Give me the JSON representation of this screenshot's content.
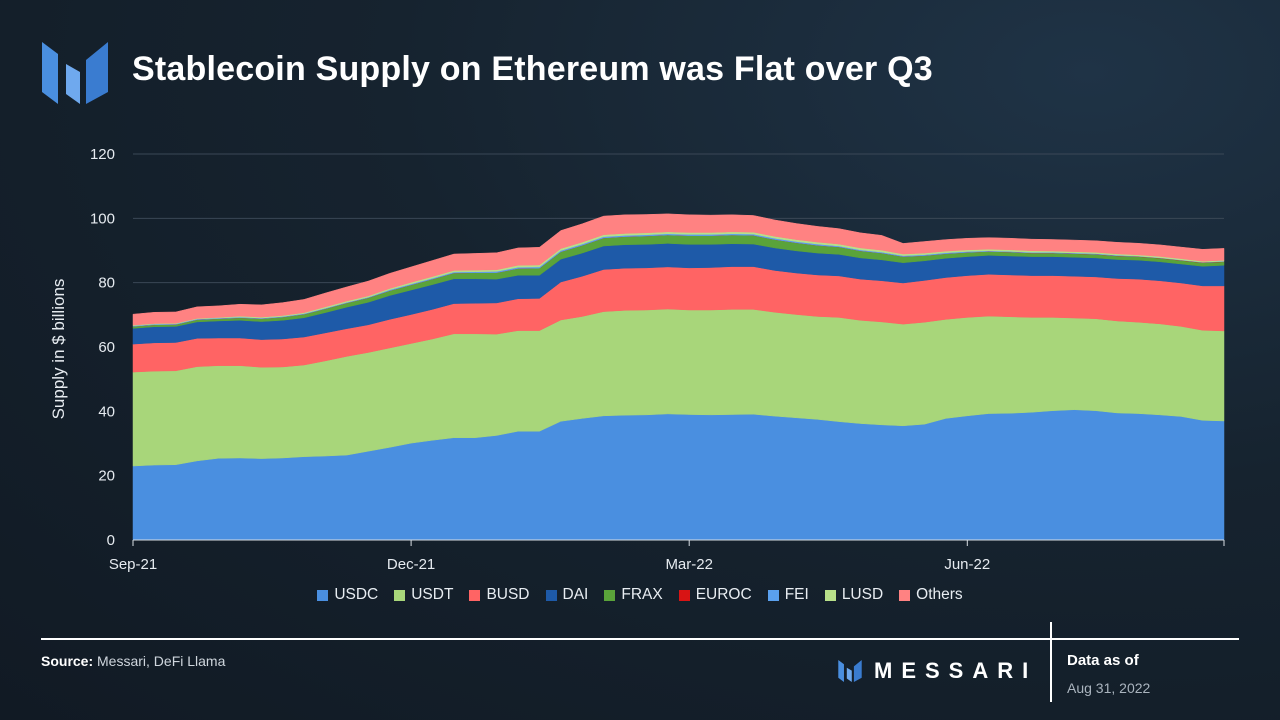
{
  "header": {
    "title": "Stablecoin Supply on Ethereum was Flat over Q3",
    "logo_icon": "messari-m-icon"
  },
  "colors": {
    "USDC": "#4a8fe0",
    "USDT": "#a8d67a",
    "BUSD": "#ff6464",
    "DAI": "#1e5aa8",
    "FRAX": "#5aa33a",
    "EUROC": "#d81414",
    "FEI": "#5aa0ee",
    "LUSD": "#b8e08a",
    "Others": "#ff8282",
    "grid": "#3a4756",
    "axis": "#d8dee4"
  },
  "chart_data": {
    "type": "area",
    "stacked": true,
    "title": "Stablecoin Supply on Ethereum was Flat over Q3",
    "xlabel": "",
    "ylabel": "Supply in $ billions",
    "ylim": [
      0,
      120
    ],
    "yticks": [
      0,
      20,
      40,
      60,
      80,
      100,
      120
    ],
    "x_tick_labels": [
      {
        "label": "Sep-21",
        "index": 0
      },
      {
        "label": "Dec-21",
        "index": 13
      },
      {
        "label": "Mar-22",
        "index": 26
      },
      {
        "label": "Jun-22",
        "index": 39
      }
    ],
    "x_count": 52,
    "legend_position": "bottom",
    "series": [
      {
        "name": "USDC",
        "values": [
          23,
          23.3,
          23.4,
          24.6,
          25.4,
          25.5,
          25.3,
          25.5,
          25.9,
          26.1,
          26.4,
          27.6,
          28.8,
          30.1,
          31,
          31.8,
          31.8,
          32.5,
          33.8,
          33.8,
          36.9,
          37.8,
          38.6,
          38.8,
          38.9,
          39.2,
          39,
          38.9,
          39,
          39.1,
          38.5,
          38,
          37.5,
          36.8,
          36.2,
          35.8,
          35.5,
          36,
          37.8,
          38.6,
          39.3,
          39.4,
          39.7,
          40.2,
          40.5,
          40.2,
          39.5,
          39.3,
          38.9,
          38.4,
          37.2,
          37
        ]
      },
      {
        "name": "USDT",
        "values": [
          29.2,
          29.2,
          29.2,
          29.3,
          28.8,
          28.7,
          28.4,
          28.3,
          28.5,
          29.6,
          30.7,
          30.7,
          30.9,
          31,
          31.5,
          32.3,
          32.3,
          31.5,
          31.3,
          31.3,
          31.5,
          31.7,
          32.4,
          32.6,
          32.6,
          32.6,
          32.5,
          32.6,
          32.7,
          32.6,
          32.3,
          32.1,
          32,
          32.4,
          32.1,
          32,
          31.6,
          31.7,
          30.8,
          30.6,
          30.3,
          30,
          29.5,
          29,
          28.5,
          28.6,
          28.6,
          28.4,
          28.3,
          28,
          28,
          28
        ]
      },
      {
        "name": "BUSD",
        "values": [
          8.7,
          8.8,
          8.8,
          8.8,
          8.6,
          8.6,
          8.6,
          8.7,
          8.7,
          8.7,
          8.6,
          8.6,
          8.9,
          9,
          9.2,
          9.4,
          9.5,
          9.7,
          9.9,
          10,
          11.8,
          12.5,
          13.1,
          13.1,
          13.1,
          13.1,
          13.1,
          13.2,
          13.3,
          13.3,
          13,
          12.9,
          12.9,
          12.9,
          12.8,
          12.8,
          12.8,
          13,
          13,
          13,
          13,
          13,
          13,
          13,
          13,
          13,
          13.2,
          13.4,
          13.4,
          13.5,
          13.8,
          14
        ]
      },
      {
        "name": "DAI",
        "values": [
          4.9,
          5,
          5,
          5.1,
          5.3,
          5.5,
          5.6,
          5.8,
          6,
          6.3,
          6.7,
          7,
          7.4,
          7.6,
          7.7,
          7.7,
          7.6,
          7.4,
          7.3,
          7.2,
          7.1,
          7.2,
          7.3,
          7.3,
          7.3,
          7.3,
          7.3,
          7.2,
          7.1,
          7,
          7,
          6.9,
          6.8,
          6.7,
          6.6,
          6.5,
          6.3,
          6.1,
          6,
          5.9,
          5.9,
          5.9,
          5.9,
          5.9,
          5.9,
          5.9,
          5.9,
          5.9,
          5.9,
          5.9,
          6.1,
          6.4
        ]
      },
      {
        "name": "FRAX",
        "values": [
          0.6,
          0.6,
          0.6,
          0.7,
          0.7,
          0.8,
          0.9,
          1,
          1.1,
          1.2,
          1.3,
          1.4,
          1.5,
          1.6,
          1.7,
          1.8,
          1.9,
          2,
          2.1,
          2.2,
          2.3,
          2.4,
          2.5,
          2.5,
          2.6,
          2.6,
          2.7,
          2.7,
          2.7,
          2.7,
          2.6,
          2.5,
          2.4,
          2.3,
          2.2,
          2.1,
          1.9,
          1.6,
          1.4,
          1.3,
          1.2,
          1.2,
          1.1,
          1.1,
          1.1,
          1.1,
          1.1,
          1.1,
          1.1,
          1.1,
          1.1,
          1.1
        ]
      },
      {
        "name": "EUROC",
        "values": [
          0,
          0,
          0,
          0,
          0,
          0,
          0,
          0,
          0,
          0,
          0,
          0,
          0,
          0,
          0,
          0,
          0,
          0,
          0,
          0,
          0,
          0,
          0,
          0,
          0,
          0,
          0,
          0,
          0,
          0,
          0,
          0,
          0,
          0,
          0,
          0,
          0,
          0,
          0,
          0,
          0,
          0.02,
          0.03,
          0.03,
          0.04,
          0.04,
          0.05,
          0.05,
          0.06,
          0.06,
          0.07,
          0.07
        ]
      },
      {
        "name": "FEI",
        "values": [
          0.2,
          0.2,
          0.2,
          0.2,
          0.2,
          0.2,
          0.2,
          0.2,
          0.2,
          0.2,
          0.2,
          0.2,
          0.3,
          0.3,
          0.3,
          0.3,
          0.3,
          0.4,
          0.4,
          0.4,
          0.4,
          0.4,
          0.4,
          0.4,
          0.4,
          0.4,
          0.4,
          0.4,
          0.4,
          0.4,
          0.4,
          0.4,
          0.4,
          0.3,
          0.3,
          0.3,
          0.3,
          0.3,
          0.3,
          0.3,
          0.2,
          0.2,
          0.2,
          0.2,
          0.2,
          0.2,
          0.2,
          0.1,
          0.1,
          0.1,
          0.1,
          0.1
        ]
      },
      {
        "name": "LUSD",
        "values": [
          0.2,
          0.2,
          0.2,
          0.2,
          0.2,
          0.3,
          0.3,
          0.3,
          0.3,
          0.4,
          0.4,
          0.4,
          0.4,
          0.5,
          0.5,
          0.5,
          0.5,
          0.5,
          0.6,
          0.6,
          0.6,
          0.6,
          0.6,
          0.6,
          0.6,
          0.6,
          0.6,
          0.6,
          0.6,
          0.6,
          0.6,
          0.6,
          0.6,
          0.6,
          0.6,
          0.6,
          0.5,
          0.5,
          0.5,
          0.5,
          0.5,
          0.5,
          0.5,
          0.4,
          0.4,
          0.4,
          0.4,
          0.4,
          0.4,
          0.4,
          0.3,
          0.3
        ]
      },
      {
        "name": "Others",
        "values": [
          3.4,
          3.5,
          3.5,
          3.6,
          3.6,
          3.7,
          3.8,
          4,
          4.1,
          4.3,
          4.4,
          4.6,
          4.7,
          4.8,
          5,
          5.1,
          5.2,
          5.3,
          5.4,
          5.5,
          5.6,
          5.7,
          5.8,
          5.8,
          5.7,
          5.6,
          5.5,
          5.4,
          5.3,
          5.2,
          5.1,
          5,
          4.9,
          4.8,
          4.7,
          4.6,
          3.3,
          3.6,
          3.6,
          3.6,
          3.6,
          3.6,
          3.6,
          3.6,
          3.6,
          3.6,
          3.6,
          3.6,
          3.6,
          3.6,
          3.7,
          3.7
        ]
      }
    ]
  },
  "footer": {
    "source_label": "Source:",
    "source_text": "Messari, DeFi Llama",
    "brand_name": "MESSARI",
    "as_of_label": "Data as of",
    "as_of_date": "Aug 31, 2022"
  }
}
